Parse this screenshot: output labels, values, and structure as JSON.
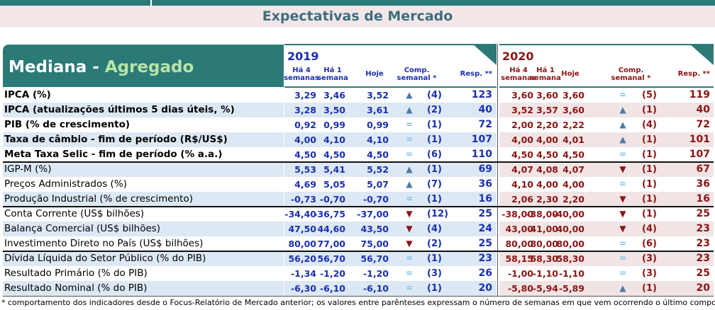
{
  "header": {
    "title": "Expectativas de Mercado"
  },
  "table": {
    "label_header": {
      "mediana": "Mediana - ",
      "agregado": "Agregado"
    },
    "years": [
      {
        "year": "2019",
        "columns": [
          [
            "Há 4",
            "semanas"
          ],
          [
            "Há 1",
            "semana"
          ],
          [
            "Hoje"
          ],
          [
            "Comp.",
            "semanal *"
          ],
          [
            "Resp. **"
          ]
        ],
        "color": "#1a2fb0"
      },
      {
        "year": "2020",
        "columns": [
          [
            "Há 4",
            "semanas"
          ],
          [
            "Há 1",
            "semana"
          ],
          [
            "Hoje"
          ],
          [
            "Comp.",
            "semanal *"
          ],
          [
            "Resp. **"
          ]
        ],
        "color": "#8b1414"
      }
    ],
    "arrow_colors": {
      "▲": "#4d7aa8",
      "▼": "#8b1414",
      "=": "#7cc0e8"
    },
    "rows": [
      {
        "label": "IPCA (%)",
        "bold": true,
        "y2019": [
          "3,29",
          "3,46",
          "3,52",
          "▲",
          "(4)",
          "123"
        ],
        "y2020": [
          "3,60",
          "3,60",
          "3,60",
          "=",
          "(5)",
          "119"
        ]
      },
      {
        "label": "IPCA (atualizações últimos 5 dias úteis, %)",
        "bold": true,
        "y2019": [
          "3,28",
          "3,50",
          "3,61",
          "▲",
          "(2)",
          "40"
        ],
        "y2020": [
          "3,52",
          "3,57",
          "3,60",
          "▲",
          "(1)",
          "40"
        ]
      },
      {
        "label": "PIB (% de crescimento)",
        "bold": true,
        "y2019": [
          "0,92",
          "0,99",
          "0,99",
          "=",
          "(1)",
          "72"
        ],
        "y2020": [
          "2,00",
          "2,20",
          "2,22",
          "▲",
          "(4)",
          "72"
        ]
      },
      {
        "label": "Taxa de câmbio - fim de período (R$/US$)",
        "bold": true,
        "y2019": [
          "4,00",
          "4,10",
          "4,10",
          "=",
          "(1)",
          "107"
        ],
        "y2020": [
          "4,00",
          "4,00",
          "4,01",
          "▲",
          "(1)",
          "101"
        ]
      },
      {
        "label": "Meta Taxa Selic - fim de período (% a.a.)",
        "bold": true,
        "y2019": [
          "4,50",
          "4,50",
          "4,50",
          "=",
          "(6)",
          "110"
        ],
        "y2020": [
          "4,50",
          "4,50",
          "4,50",
          "=",
          "(1)",
          "107"
        ]
      },
      {
        "label": "IGP-M (%)",
        "bold": false,
        "y2019": [
          "5,53",
          "5,41",
          "5,52",
          "▲",
          "(1)",
          "69"
        ],
        "y2020": [
          "4,07",
          "4,08",
          "4,07",
          "▼",
          "(1)",
          "67"
        ]
      },
      {
        "label": "Preços Administrados (%)",
        "bold": false,
        "y2019": [
          "4,69",
          "5,05",
          "5,07",
          "▲",
          "(7)",
          "36"
        ],
        "y2020": [
          "4,10",
          "4,00",
          "4,00",
          "=",
          "(1)",
          "36"
        ]
      },
      {
        "label": "Produção Industrial (% de crescimento)",
        "bold": false,
        "y2019": [
          "-0,73",
          "-0,70",
          "-0,70",
          "=",
          "(1)",
          "16"
        ],
        "y2020": [
          "2,06",
          "2,30",
          "2,20",
          "▼",
          "(1)",
          "16"
        ]
      },
      {
        "label": "Conta Corrente (US$ bilhões)",
        "bold": false,
        "y2019": [
          "-34,40",
          "-36,75",
          "-37,00",
          "▼",
          "(12)",
          "25"
        ],
        "y2020": [
          "-38,00",
          "-38,00",
          "-40,00",
          "▼",
          "(1)",
          "25"
        ]
      },
      {
        "label": "Balança Comercial (US$ bilhões)",
        "bold": false,
        "y2019": [
          "47,50",
          "44,60",
          "43,50",
          "▼",
          "(4)",
          "24"
        ],
        "y2020": [
          "43,00",
          "41,00",
          "40,00",
          "▼",
          "(4)",
          "23"
        ]
      },
      {
        "label": "Investimento Direto no País (US$ bilhões)",
        "bold": false,
        "y2019": [
          "80,00",
          "77,00",
          "75,00",
          "▼",
          "(2)",
          "25"
        ],
        "y2020": [
          "80,00",
          "80,00",
          "80,00",
          "=",
          "(6)",
          "23"
        ]
      },
      {
        "label": "Dívida Líquida do Setor Público (% do PIB)",
        "bold": false,
        "y2019": [
          "56,20",
          "56,70",
          "56,70",
          "=",
          "(1)",
          "23"
        ],
        "y2020": [
          "58,15",
          "58,30",
          "58,30",
          "=",
          "(3)",
          "23"
        ]
      },
      {
        "label": "Resultado Primário (% do PIB)",
        "bold": false,
        "y2019": [
          "-1,34",
          "-1,20",
          "-1,20",
          "=",
          "(3)",
          "26"
        ],
        "y2020": [
          "-1,00",
          "-1,10",
          "-1,10",
          "=",
          "(3)",
          "25"
        ]
      },
      {
        "label": "Resultado Nominal (% do PIB)",
        "bold": false,
        "y2019": [
          "-6,30",
          "-6,10",
          "-6,10",
          "=",
          "(1)",
          "20"
        ],
        "y2020": [
          "-5,80",
          "-5,94",
          "-5,89",
          "▲",
          "(1)",
          "20"
        ]
      }
    ],
    "group_breaks_after": [
      4,
      7,
      10
    ]
  },
  "footnote": "* comportamento dos indicadores desde o Focus-Relatório de Mercado anterior; os valores entre parênteses expressam o número de semanas em que vem ocorrendo o último comportamento"
}
